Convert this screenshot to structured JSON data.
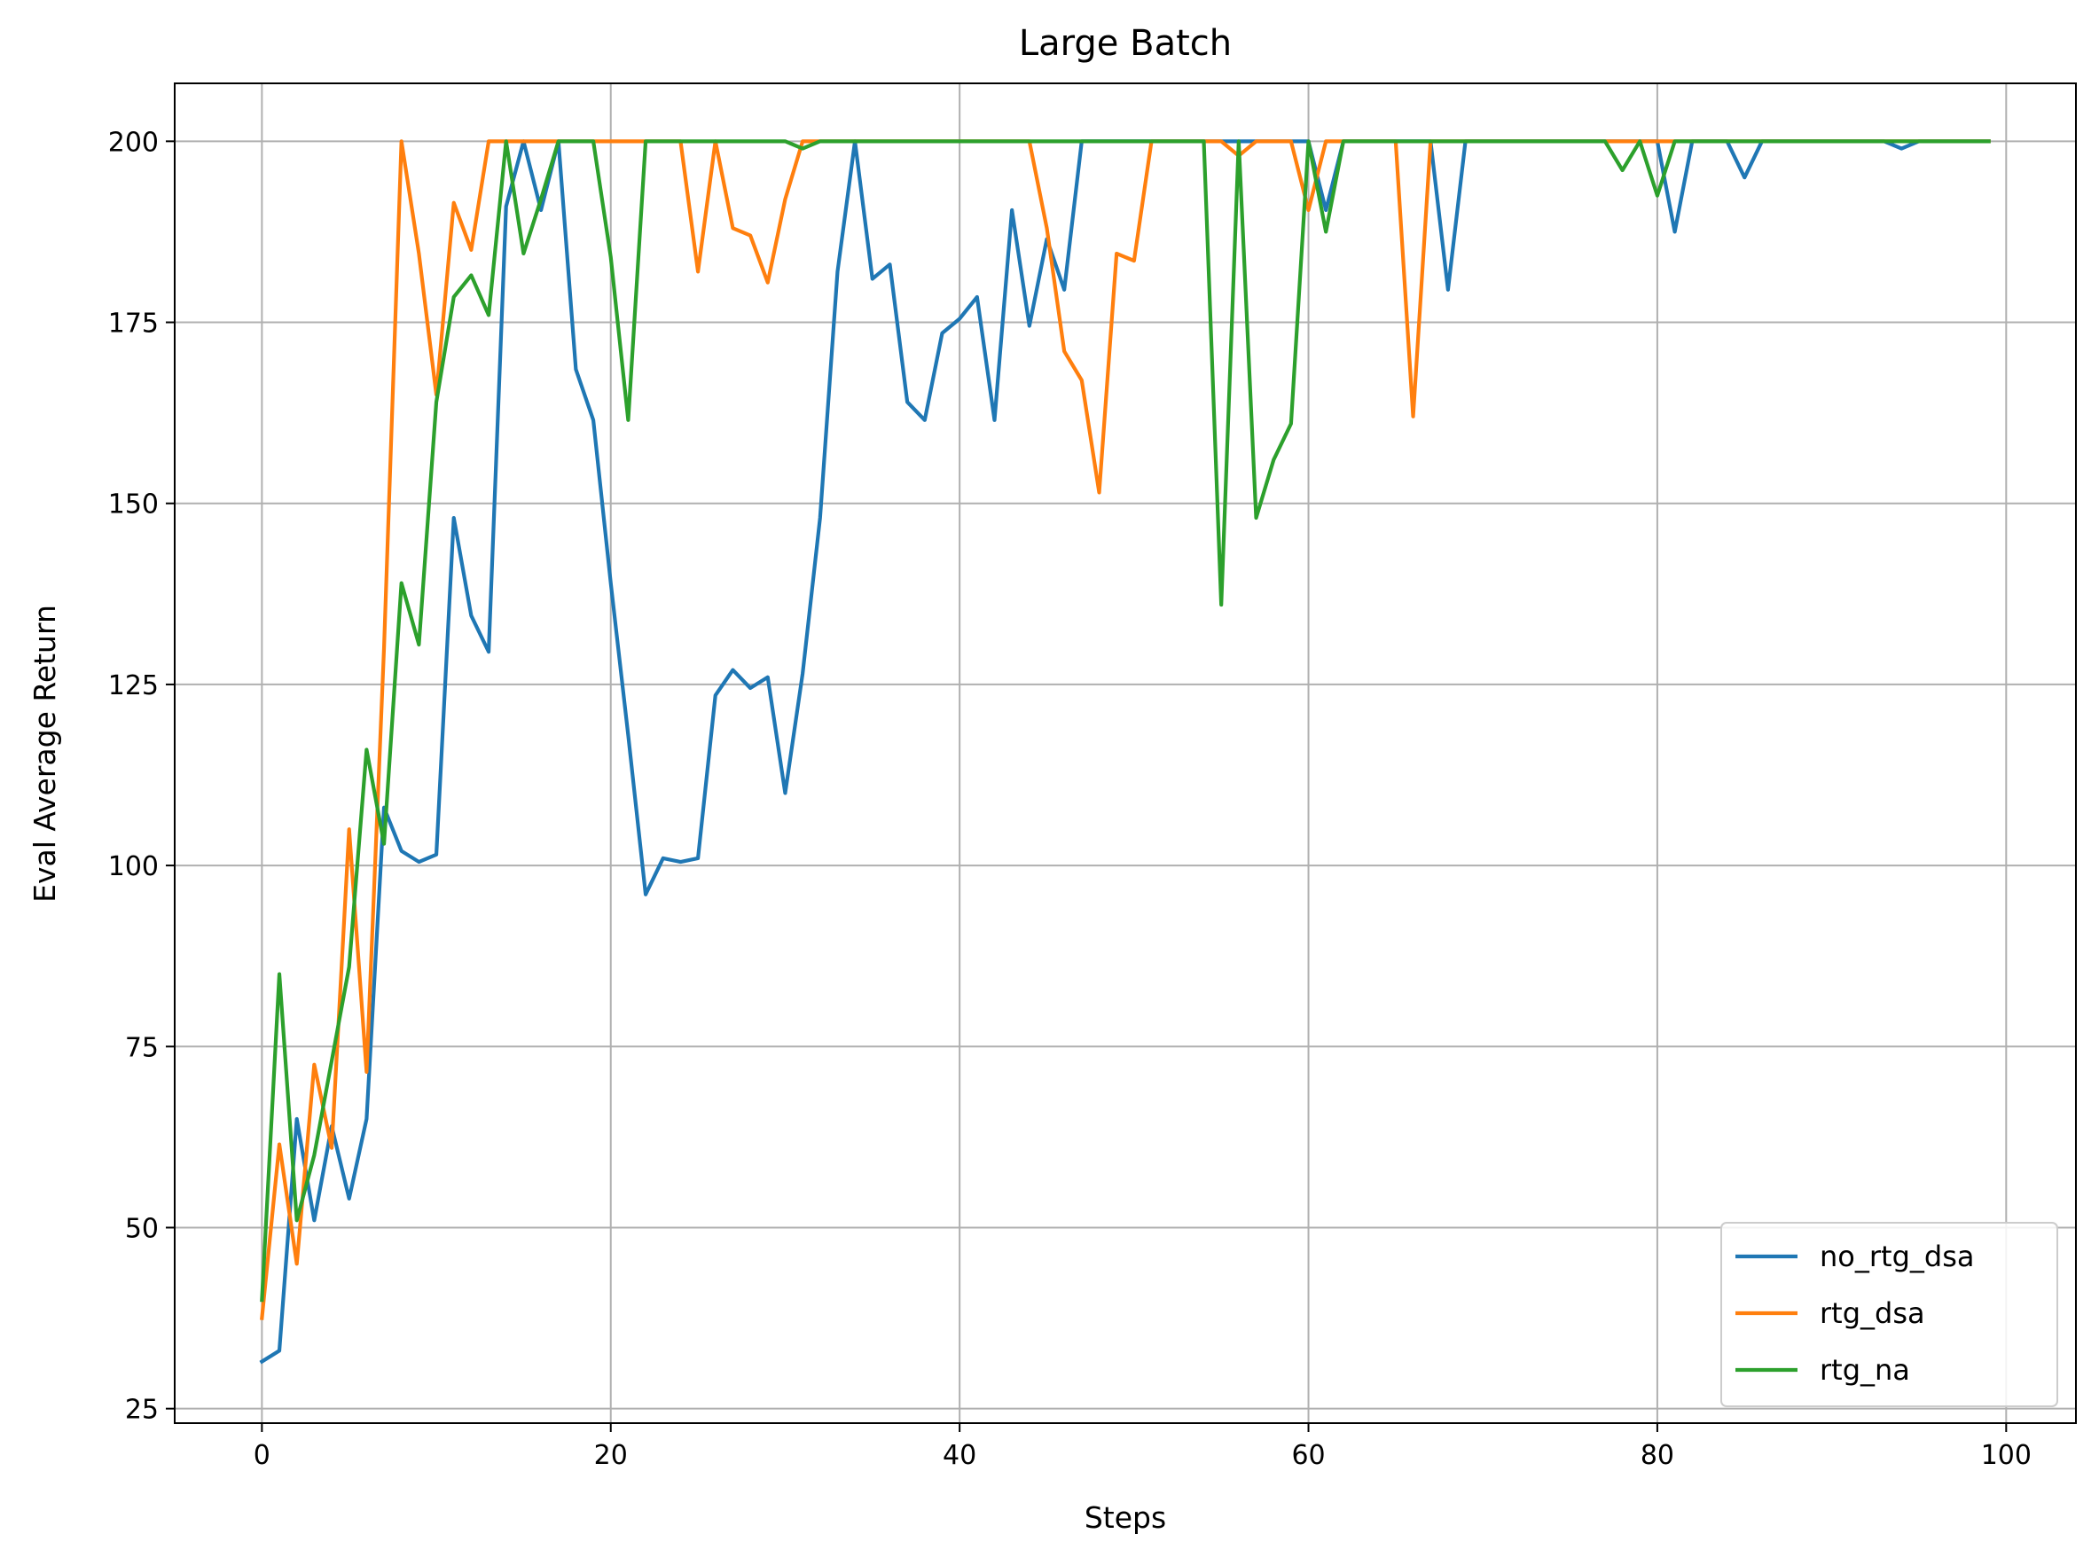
{
  "chart_data": {
    "type": "line",
    "title": "Large Batch",
    "xlabel": "Steps",
    "ylabel": "Eval Average Return",
    "xlim": [
      -5,
      104
    ],
    "ylim": [
      23,
      208
    ],
    "xticks": [
      0,
      20,
      40,
      60,
      80,
      100
    ],
    "yticks": [
      25,
      50,
      75,
      100,
      125,
      150,
      175,
      200
    ],
    "grid": true,
    "legend_position": "lower-right",
    "x": [
      0,
      1,
      2,
      3,
      4,
      5,
      6,
      7,
      8,
      9,
      10,
      11,
      12,
      13,
      14,
      15,
      16,
      17,
      18,
      19,
      20,
      21,
      22,
      23,
      24,
      25,
      26,
      27,
      28,
      29,
      30,
      31,
      32,
      33,
      34,
      35,
      36,
      37,
      38,
      39,
      40,
      41,
      42,
      43,
      44,
      45,
      46,
      47,
      48,
      49,
      50,
      51,
      52,
      53,
      54,
      55,
      56,
      57,
      58,
      59,
      60,
      61,
      62,
      63,
      64,
      65,
      66,
      67,
      68,
      69,
      70,
      71,
      72,
      73,
      74,
      75,
      76,
      77,
      78,
      79,
      80,
      81,
      82,
      83,
      84,
      85,
      86,
      87,
      88,
      89,
      90,
      91,
      92,
      93,
      94,
      95,
      96,
      97,
      98,
      99
    ],
    "series": [
      {
        "name": "no_rtg_dsa",
        "color": "#1f77b4",
        "values": [
          31.5,
          33,
          65,
          51,
          64,
          54,
          65,
          108,
          102,
          100.5,
          101.5,
          148,
          134.5,
          129.5,
          191,
          200,
          190.5,
          200,
          168.5,
          161.5,
          139,
          118,
          96,
          101,
          100.5,
          101,
          123.5,
          127,
          124.5,
          126,
          110,
          126.5,
          148,
          182,
          200,
          181,
          183,
          164,
          161.5,
          173.5,
          175.5,
          178.5,
          161.5,
          190.5,
          174.5,
          186.5,
          179.5,
          200,
          200,
          200,
          200,
          200,
          200,
          200,
          200,
          200,
          200,
          200,
          200,
          200,
          200,
          190.5,
          200,
          200,
          200,
          200,
          200,
          200,
          179.5,
          200,
          200,
          200,
          200,
          200,
          200,
          200,
          200,
          200,
          200,
          200,
          200,
          187.5,
          200,
          200,
          200,
          195,
          200,
          200,
          200,
          200,
          200,
          200,
          200,
          200,
          199,
          200,
          200,
          200,
          200,
          200
        ]
      },
      {
        "name": "rtg_dsa",
        "color": "#ff7f0e",
        "values": [
          37.5,
          61.5,
          45,
          72.5,
          61,
          105,
          71.5,
          130,
          200,
          184.5,
          165,
          191.5,
          185,
          200,
          200,
          200,
          200,
          200,
          200,
          200,
          200,
          200,
          200,
          200,
          200,
          182,
          200,
          188,
          187,
          180.5,
          192,
          200,
          200,
          200,
          200,
          200,
          200,
          200,
          200,
          200,
          200,
          200,
          200,
          200,
          200,
          188,
          171,
          167,
          151.5,
          184.5,
          183.5,
          200,
          200,
          200,
          200,
          200,
          198,
          200,
          200,
          200,
          190.5,
          200,
          200,
          200,
          200,
          200,
          162,
          200,
          200,
          200,
          200,
          200,
          200,
          200,
          200,
          200,
          200,
          200,
          200,
          200,
          200,
          200,
          200,
          200,
          200,
          200,
          200,
          200,
          200,
          200,
          200,
          200,
          200,
          200,
          200,
          200,
          200,
          200,
          200,
          200
        ]
      },
      {
        "name": "rtg_na",
        "color": "#2ca02c",
        "values": [
          40,
          85,
          51,
          60,
          73,
          86,
          116,
          103,
          139,
          130.5,
          164,
          178.5,
          181.5,
          176,
          200,
          184.5,
          192,
          200,
          200,
          200,
          184,
          161.5,
          200,
          200,
          200,
          200,
          200,
          200,
          200,
          200,
          200,
          199,
          200,
          200,
          200,
          200,
          200,
          200,
          200,
          200,
          200,
          200,
          200,
          200,
          200,
          200,
          200,
          200,
          200,
          200,
          200,
          200,
          200,
          200,
          200,
          136,
          200,
          148,
          156,
          161,
          200,
          187.5,
          200,
          200,
          200,
          200,
          200,
          200,
          200,
          200,
          200,
          200,
          200,
          200,
          200,
          200,
          200,
          200,
          196,
          200,
          192.5,
          200,
          200,
          200,
          200,
          200,
          200,
          200,
          200,
          200,
          200,
          200,
          200,
          200,
          200,
          200,
          200,
          200,
          200,
          200
        ]
      }
    ]
  }
}
